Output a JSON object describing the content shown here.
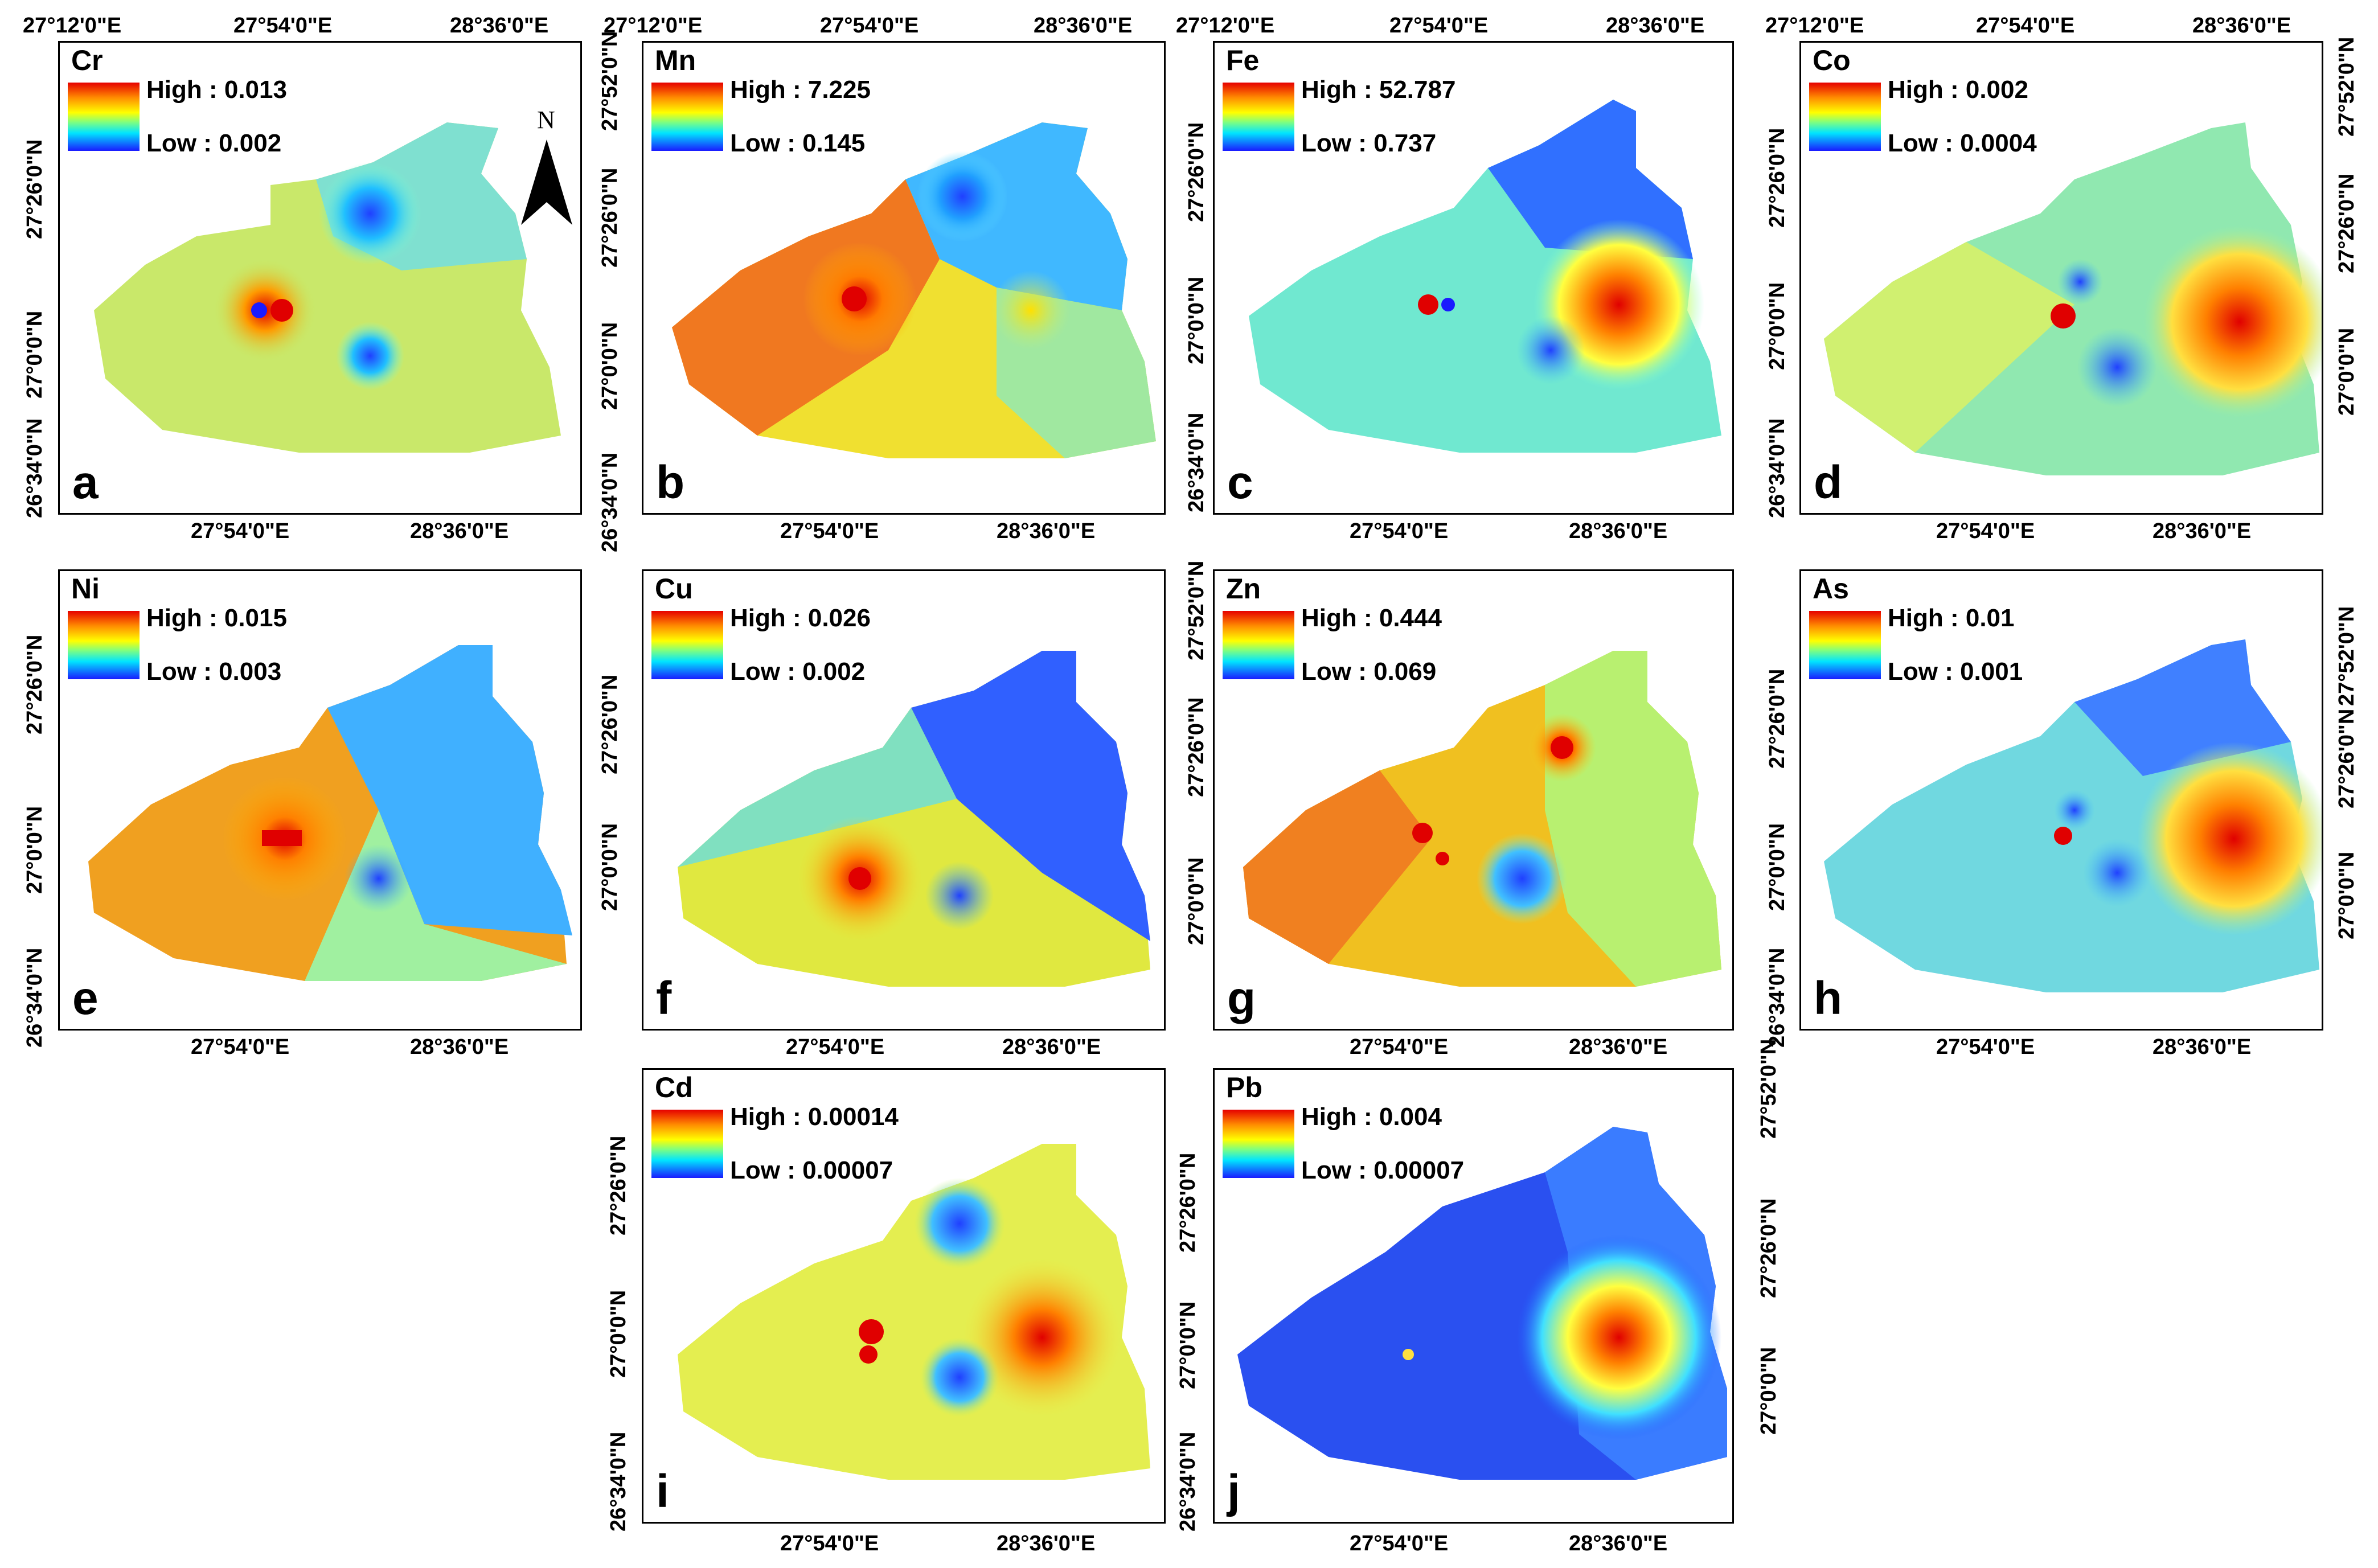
{
  "panels": [
    {
      "letter": "a",
      "element": "Cr",
      "high": "High : 0.013",
      "low": "Low : 0.002"
    },
    {
      "letter": "b",
      "element": "Mn",
      "high": "High : 7.225",
      "low": "Low : 0.145"
    },
    {
      "letter": "c",
      "element": "Fe",
      "high": "High : 52.787",
      "low": "Low : 0.737"
    },
    {
      "letter": "d",
      "element": "Co",
      "high": "High : 0.002",
      "low": "Low : 0.0004"
    },
    {
      "letter": "e",
      "element": "Ni",
      "high": "High : 0.015",
      "low": "Low : 0.003"
    },
    {
      "letter": "f",
      "element": "Cu",
      "high": "High : 0.026",
      "low": "Low : 0.002"
    },
    {
      "letter": "g",
      "element": "Zn",
      "high": "High : 0.444",
      "low": "Low : 0.069"
    },
    {
      "letter": "h",
      "element": "As",
      "high": "High : 0.01",
      "low": "Low : 0.001"
    },
    {
      "letter": "i",
      "element": "Cd",
      "high": "High : 0.00014",
      "low": "Low : 0.00007"
    },
    {
      "letter": "j",
      "element": "Pb",
      "high": "High : 0.004",
      "low": "Low : 0.00007"
    }
  ],
  "ticks": {
    "lon_12": "27°12'0\"E",
    "lon_54": "27°54'0\"E",
    "lon_36": "28°36'0\"E",
    "lat_52": "27°52'0\"N",
    "lat_26": "27°26'0\"N",
    "lat_0": "27°0'0\"N",
    "lat_34": "26°34'0\"N"
  },
  "north": "N",
  "colors": {
    "high": "#e60000",
    "mid": "#ffff00",
    "low": "#1a1aff"
  }
}
